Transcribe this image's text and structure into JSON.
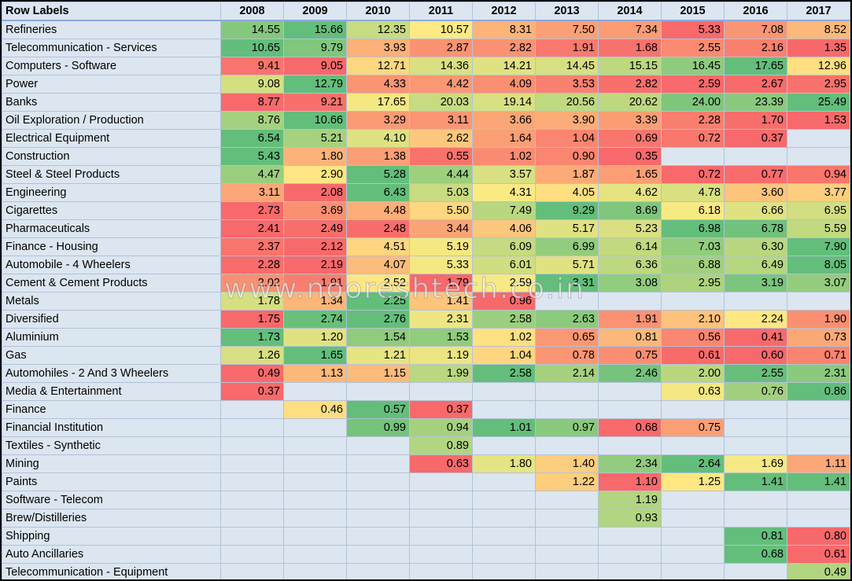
{
  "chart_data": {
    "type": "table",
    "row_header": "Row Labels",
    "columns": [
      "2008",
      "2009",
      "2010",
      "2011",
      "2012",
      "2013",
      "2014",
      "2015",
      "2016",
      "2017"
    ],
    "rows": [
      {
        "label": "Refineries",
        "values": [
          14.55,
          15.66,
          12.35,
          10.57,
          8.31,
          7.5,
          7.34,
          5.33,
          7.08,
          8.52
        ]
      },
      {
        "label": "Telecommunication - Services",
        "values": [
          10.65,
          9.79,
          3.93,
          2.87,
          2.82,
          1.91,
          1.68,
          2.55,
          2.16,
          1.35
        ]
      },
      {
        "label": "Computers - Software",
        "values": [
          9.41,
          9.05,
          12.71,
          14.36,
          14.21,
          14.45,
          15.15,
          16.45,
          17.65,
          12.96
        ]
      },
      {
        "label": "Power",
        "values": [
          9.08,
          12.79,
          4.33,
          4.42,
          4.09,
          3.53,
          2.82,
          2.59,
          2.67,
          2.95
        ]
      },
      {
        "label": "Banks",
        "values": [
          8.77,
          9.21,
          17.65,
          20.03,
          19.14,
          20.56,
          20.62,
          24.0,
          23.39,
          25.49
        ]
      },
      {
        "label": "Oil Exploration / Production",
        "values": [
          8.76,
          10.66,
          3.29,
          3.11,
          3.66,
          3.9,
          3.39,
          2.28,
          1.7,
          1.53
        ]
      },
      {
        "label": "Electrical Equipment",
        "values": [
          6.54,
          5.21,
          4.1,
          2.62,
          1.64,
          1.04,
          0.69,
          0.72,
          0.37,
          null
        ]
      },
      {
        "label": "Construction",
        "values": [
          5.43,
          1.8,
          1.38,
          0.55,
          1.02,
          0.9,
          0.35,
          null,
          null,
          null
        ]
      },
      {
        "label": "Steel & Steel Products",
        "values": [
          4.47,
          2.9,
          5.28,
          4.44,
          3.57,
          1.87,
          1.65,
          0.72,
          0.77,
          0.94
        ]
      },
      {
        "label": "Engineering",
        "values": [
          3.11,
          2.08,
          6.43,
          5.03,
          4.31,
          4.05,
          4.62,
          4.78,
          3.6,
          3.77
        ]
      },
      {
        "label": "Cigarettes",
        "values": [
          2.73,
          3.69,
          4.48,
          5.5,
          7.49,
          9.29,
          8.69,
          6.18,
          6.66,
          6.95
        ]
      },
      {
        "label": "Pharmaceuticals",
        "values": [
          2.41,
          2.49,
          2.48,
          3.44,
          4.06,
          5.17,
          5.23,
          6.98,
          6.78,
          5.59
        ]
      },
      {
        "label": "Finance - Housing",
        "values": [
          2.37,
          2.12,
          4.51,
          5.19,
          6.09,
          6.99,
          6.14,
          7.03,
          6.3,
          7.9
        ]
      },
      {
        "label": "Automobile - 4 Wheelers",
        "values": [
          2.28,
          2.19,
          4.07,
          5.33,
          6.01,
          5.71,
          6.36,
          6.88,
          6.49,
          8.05
        ]
      },
      {
        "label": "Cement & Cement Products",
        "values": [
          2.02,
          1.91,
          2.52,
          1.79,
          2.59,
          3.31,
          3.08,
          2.95,
          3.19,
          3.07
        ]
      },
      {
        "label": "Metals",
        "values": [
          1.78,
          1.34,
          2.25,
          1.41,
          0.96,
          null,
          null,
          null,
          null,
          null
        ]
      },
      {
        "label": "Diversified",
        "values": [
          1.75,
          2.74,
          2.76,
          2.31,
          2.58,
          2.63,
          1.91,
          2.1,
          2.24,
          1.9
        ]
      },
      {
        "label": "Aluminium",
        "values": [
          1.73,
          1.2,
          1.54,
          1.53,
          1.02,
          0.65,
          0.81,
          0.56,
          0.41,
          0.73
        ]
      },
      {
        "label": "Gas",
        "values": [
          1.26,
          1.65,
          1.21,
          1.19,
          1.04,
          0.78,
          0.75,
          0.61,
          0.6,
          0.71
        ]
      },
      {
        "label": "Automohiles - 2 And 3 Wheelers",
        "values": [
          0.49,
          1.13,
          1.15,
          1.99,
          2.58,
          2.14,
          2.46,
          2.0,
          2.55,
          2.31
        ]
      },
      {
        "label": "Media & Entertainment",
        "values": [
          0.37,
          null,
          null,
          null,
          null,
          null,
          null,
          0.63,
          0.76,
          0.86
        ]
      },
      {
        "label": "Finance",
        "values": [
          null,
          0.46,
          0.57,
          0.37,
          null,
          null,
          null,
          null,
          null,
          null
        ]
      },
      {
        "label": "Financial Institution",
        "values": [
          null,
          null,
          0.99,
          0.94,
          1.01,
          0.97,
          0.68,
          0.75,
          null,
          null
        ]
      },
      {
        "label": "Textiles - Synthetic",
        "values": [
          null,
          null,
          null,
          0.89,
          null,
          null,
          null,
          null,
          null,
          null
        ]
      },
      {
        "label": "Mining",
        "values": [
          null,
          null,
          null,
          0.63,
          1.8,
          1.4,
          2.34,
          2.64,
          1.69,
          1.11
        ]
      },
      {
        "label": "Paints",
        "values": [
          null,
          null,
          null,
          null,
          null,
          1.22,
          1.1,
          1.25,
          1.41,
          1.41
        ]
      },
      {
        "label": "Software - Telecom",
        "values": [
          null,
          null,
          null,
          null,
          null,
          null,
          1.19,
          null,
          null,
          null
        ]
      },
      {
        "label": "Brew/Distilleries",
        "values": [
          null,
          null,
          null,
          null,
          null,
          null,
          0.93,
          null,
          null,
          null
        ]
      },
      {
        "label": "Shipping",
        "values": [
          null,
          null,
          null,
          null,
          null,
          null,
          null,
          null,
          0.81,
          0.8
        ]
      },
      {
        "label": "Auto Ancillaries",
        "values": [
          null,
          null,
          null,
          null,
          null,
          null,
          null,
          null,
          0.68,
          0.61
        ]
      },
      {
        "label": "Telecommunication - Equipment",
        "values": [
          null,
          null,
          null,
          null,
          null,
          null,
          null,
          null,
          null,
          0.49
        ]
      }
    ],
    "color_scale": {
      "low": "#f8696b",
      "mid": "#ffeb84",
      "high": "#63be7b",
      "scope": "per-row"
    }
  },
  "watermark": "www.nooreshtech.co.in"
}
